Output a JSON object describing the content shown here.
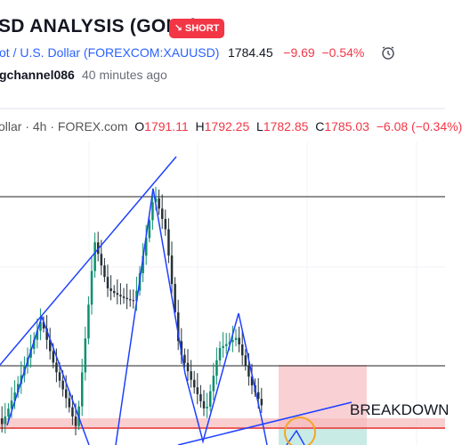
{
  "header": {
    "title": "SD ANALYSIS (GOLD)",
    "badge": "SHORT",
    "symbol": "ot / U.S. Dollar (FOREXCOM:XAUUSD)",
    "price": "1784.45",
    "change": "−9.69",
    "change_percent": "−0.54%",
    "author": "gchannel086",
    "time": "40 minutes ago"
  },
  "legend": {
    "symbol": "ollar · 4h · FOREX.com",
    "open_label": "O",
    "open": "1791.11",
    "high_label": "H",
    "high": "1792.25",
    "low_label": "L",
    "low": "1782.85",
    "close_label": "C",
    "close": "1785.03",
    "change": "−6.08 (−0.34%)"
  },
  "annotation": {
    "text": "BREAKDOWN"
  }
}
